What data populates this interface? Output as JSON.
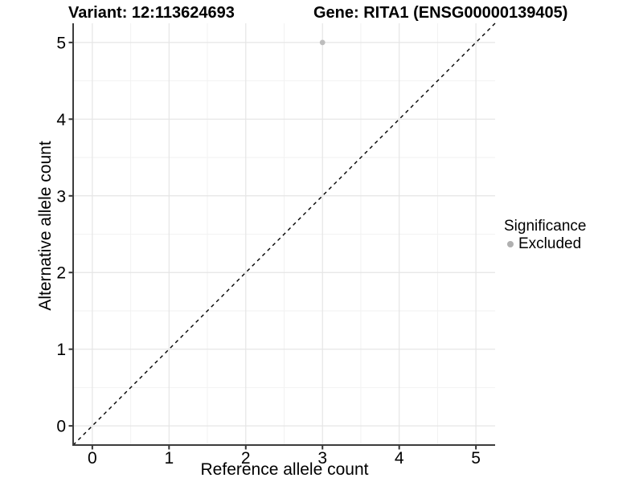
{
  "chart_data": {
    "type": "scatter",
    "titles": {
      "left": "Variant: 12:113624693",
      "right": "Gene: RITA1 (ENSG00000139405)"
    },
    "xlabel": "Reference allele count",
    "ylabel": "Alternative allele count",
    "xlim": [
      -0.25,
      5.25
    ],
    "ylim": [
      -0.25,
      5.25
    ],
    "xticks": [
      0,
      1,
      2,
      3,
      4,
      5
    ],
    "yticks": [
      0,
      1,
      2,
      3,
      4,
      5
    ],
    "grid": "major+minor",
    "legend_position": "right",
    "identity_line": {
      "style": "dashed",
      "slope": 1,
      "intercept": 0,
      "color": "#000000"
    },
    "points": [
      {
        "x": 3,
        "y": 5,
        "significance": "Excluded",
        "color": "#bdbdbd"
      }
    ],
    "legend": {
      "title": "Significance",
      "items": [
        {
          "label": "Excluded",
          "color": "#b0b0b0",
          "marker": "circle"
        }
      ]
    },
    "colors": {
      "grid_major": "#e5e5e5",
      "grid_minor": "#f2f2f2",
      "axis_line": "#3c3c3c",
      "tick": "#333333",
      "text": "#000000"
    }
  }
}
